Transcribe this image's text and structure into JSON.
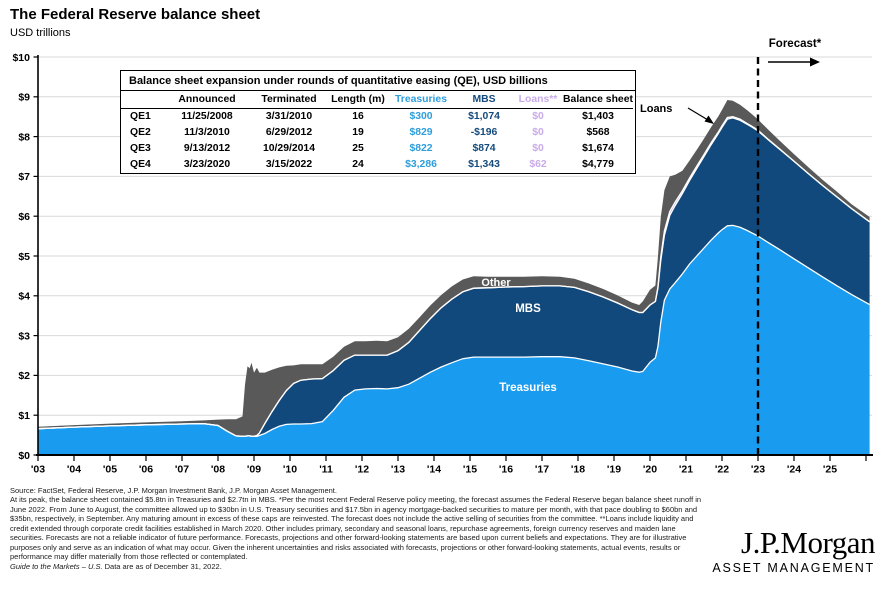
{
  "header": {
    "title": "The Federal Reserve balance sheet",
    "subtitle": "USD trillions"
  },
  "labels": {
    "other": "Other",
    "mbs": "MBS",
    "treasuries": "Treasuries",
    "loans": "Loans",
    "forecast": "Forecast*"
  },
  "axis": {
    "y_labels": [
      "$0",
      "$1",
      "$2",
      "$3",
      "$4",
      "$5",
      "$6",
      "$7",
      "$8",
      "$9",
      "$10"
    ],
    "x_labels": [
      "'03",
      "'04",
      "'05",
      "'06",
      "'07",
      "'08",
      "'09",
      "'10",
      "'11",
      "'12",
      "'13",
      "'14",
      "'15",
      "'16",
      "'17",
      "'18",
      "'19",
      "'20",
      "'21",
      "'22",
      "'23",
      "'24",
      "'25"
    ]
  },
  "table": {
    "title": "Balance sheet expansion under rounds of quantitative easing (QE), USD billions",
    "columns": [
      "",
      "Announced",
      "Terminated",
      "Length (m)",
      "Treasuries",
      "MBS",
      "Loans**",
      "Balance sheet"
    ],
    "rows": [
      [
        "QE1",
        "11/25/2008",
        "3/31/2010",
        "16",
        "$300",
        "$1,074",
        "$0",
        "$1,403"
      ],
      [
        "QE2",
        "11/3/2010",
        "6/29/2012",
        "19",
        "$829",
        "-$196",
        "$0",
        "$568"
      ],
      [
        "QE3",
        "9/13/2012",
        "10/29/2014",
        "25",
        "$822",
        "$874",
        "$0",
        "$1,674"
      ],
      [
        "QE4",
        "3/23/2020",
        "3/15/2022",
        "24",
        "$3,286",
        "$1,343",
        "$62",
        "$4,779"
      ]
    ]
  },
  "chart_data": {
    "type": "area",
    "stacked": true,
    "title": "The Federal Reserve balance sheet",
    "ylabel": "USD trillions",
    "ylim": [
      0,
      10
    ],
    "x_range": [
      2003,
      2026.1
    ],
    "forecast_start": 2023.0,
    "grid": true,
    "x": [
      2003,
      2004,
      2005,
      2006,
      2007,
      2007.6,
      2008,
      2008.25,
      2008.5,
      2008.68,
      2008.75,
      2008.82,
      2008.88,
      2008.93,
      2009,
      2009.08,
      2009.15,
      2009.3,
      2009.5,
      2009.7,
      2009.9,
      2010.1,
      2010.3,
      2010.6,
      2010.9,
      2011.2,
      2011.5,
      2011.8,
      2012.1,
      2012.4,
      2012.7,
      2013,
      2013.3,
      2013.6,
      2013.9,
      2014.2,
      2014.5,
      2014.8,
      2015.1,
      2015.5,
      2016,
      2016.5,
      2017,
      2017.5,
      2017.9,
      2018.3,
      2018.7,
      2019.1,
      2019.5,
      2019.7,
      2019.8,
      2020,
      2020.15,
      2020.22,
      2020.3,
      2020.4,
      2020.55,
      2020.7,
      2020.9,
      2021.1,
      2021.3,
      2021.5,
      2021.7,
      2021.9,
      2022,
      2022.15,
      2022.3,
      2022.5,
      2022.7,
      2022.85,
      2023,
      2023.3,
      2023.6,
      2024,
      2024.4,
      2024.8,
      2025.2,
      2025.6,
      2026.1
    ],
    "series": [
      {
        "name": "Treasuries",
        "color": "#199bf0",
        "values": [
          0.66,
          0.7,
          0.73,
          0.76,
          0.78,
          0.79,
          0.74,
          0.6,
          0.48,
          0.47,
          0.47,
          0.48,
          0.48,
          0.47,
          0.47,
          0.47,
          0.49,
          0.54,
          0.64,
          0.72,
          0.77,
          0.78,
          0.78,
          0.79,
          0.84,
          1.12,
          1.45,
          1.63,
          1.66,
          1.67,
          1.66,
          1.69,
          1.78,
          1.93,
          2.08,
          2.21,
          2.32,
          2.42,
          2.46,
          2.46,
          2.46,
          2.46,
          2.47,
          2.47,
          2.44,
          2.37,
          2.29,
          2.21,
          2.11,
          2.08,
          2.1,
          2.33,
          2.44,
          2.72,
          3.34,
          3.89,
          4.17,
          4.33,
          4.55,
          4.8,
          5.0,
          5.2,
          5.4,
          5.58,
          5.66,
          5.76,
          5.77,
          5.72,
          5.64,
          5.57,
          5.5,
          5.33,
          5.16,
          4.93,
          4.7,
          4.47,
          4.25,
          4.03,
          3.78
        ]
      },
      {
        "name": "MBS",
        "color": "#12497d",
        "values": [
          0,
          0,
          0,
          0,
          0,
          0,
          0,
          0,
          0,
          0,
          0,
          0,
          0,
          0,
          0,
          0.02,
          0.06,
          0.25,
          0.45,
          0.65,
          0.85,
          1.02,
          1.1,
          1.12,
          1.08,
          1.0,
          0.93,
          0.88,
          0.85,
          0.84,
          0.85,
          0.93,
          1.05,
          1.2,
          1.35,
          1.49,
          1.6,
          1.68,
          1.73,
          1.74,
          1.76,
          1.77,
          1.78,
          1.78,
          1.77,
          1.73,
          1.68,
          1.61,
          1.54,
          1.5,
          1.48,
          1.44,
          1.42,
          1.46,
          1.55,
          1.63,
          1.85,
          1.94,
          2.02,
          2.1,
          2.2,
          2.3,
          2.4,
          2.5,
          2.57,
          2.68,
          2.7,
          2.69,
          2.67,
          2.66,
          2.64,
          2.58,
          2.52,
          2.45,
          2.37,
          2.3,
          2.23,
          2.16,
          2.08
        ]
      },
      {
        "name": "Loans",
        "color": "#c9abe9",
        "values": [
          0,
          0,
          0,
          0,
          0,
          0,
          0,
          0,
          0,
          0,
          0,
          0,
          0,
          0,
          0,
          0,
          0,
          0,
          0,
          0,
          0,
          0,
          0,
          0,
          0,
          0,
          0,
          0,
          0,
          0,
          0,
          0,
          0,
          0,
          0,
          0,
          0,
          0,
          0,
          0,
          0,
          0,
          0,
          0,
          0,
          0,
          0,
          0,
          0,
          0,
          0,
          0,
          0,
          0.04,
          0.09,
          0.11,
          0.1,
          0.09,
          0.07,
          0.06,
          0.06,
          0.05,
          0.05,
          0.04,
          0.04,
          0.04,
          0.03,
          0.03,
          0.02,
          0.02,
          0.02,
          0.01,
          0.01,
          0,
          0,
          0,
          0,
          0,
          0
        ]
      },
      {
        "name": "Other",
        "color": "#595959",
        "values": [
          0.05,
          0.05,
          0.06,
          0.06,
          0.07,
          0.08,
          0.15,
          0.3,
          0.42,
          0.5,
          1.3,
          1.75,
          1.7,
          1.85,
          1.6,
          1.7,
          1.52,
          1.28,
          1.05,
          0.83,
          0.62,
          0.45,
          0.4,
          0.37,
          0.36,
          0.35,
          0.34,
          0.35,
          0.35,
          0.36,
          0.35,
          0.34,
          0.34,
          0.33,
          0.33,
          0.32,
          0.32,
          0.31,
          0.3,
          0.28,
          0.26,
          0.25,
          0.24,
          0.23,
          0.22,
          0.21,
          0.2,
          0.19,
          0.18,
          0.19,
          0.28,
          0.38,
          0.4,
          0.75,
          1.0,
          1.02,
          0.88,
          0.68,
          0.5,
          0.44,
          0.41,
          0.4,
          0.39,
          0.39,
          0.4,
          0.44,
          0.4,
          0.36,
          0.33,
          0.3,
          0.27,
          0.24,
          0.21,
          0.18,
          0.16,
          0.14,
          0.13,
          0.11,
          0.12
        ]
      }
    ]
  },
  "colors": {
    "treasuries": "#199bf0",
    "mbs": "#12497d",
    "loans": "#c9abe9",
    "other": "#595959",
    "table_treasuries_text": "#2e9edc",
    "table_loans_text": "#c9abe9",
    "gridline": "#d9d9d9",
    "forecast_line": "#000000"
  },
  "footer": {
    "source": "Source: FactSet, Federal Reserve, J.P. Morgan Investment Bank, J.P. Morgan Asset Management.",
    "body": "At its peak, the balance sheet contained $5.8tn in Treasuries and $2.7tn in MBS. *Per the most recent Federal Reserve policy meeting, the forecast assumes the Federal Reserve began balance sheet runoff in June 2022. From June to August, the committee allowed up to $30bn in U.S. Treasury securities and $17.5bn in agency mortgage-backed securities to mature per month, with that pace doubling to $60bn and $35bn, respectively, in September. Any maturing amount in excess of these caps are reinvested. The forecast does not include the active selling of securities from the committee. **Loans include liquidity and credit extended through corporate credit facilities established in March 2020. Other includes primary, secondary and seasonal loans, repurchase agreements, foreign currency reserves and maiden lane securities. Forecasts are not a reliable indicator of future performance. Forecasts, projections and other forward-looking statements are based upon current beliefs and expectations. They are for illustrative purposes only and serve as an indication of what may occur. Given the inherent uncertainties and risks associated with forecasts, projections or other forward-looking statements, actual events, results or performance may differ materially from those reflected or contemplated.",
    "gtm_italic": "Guide to the Markets – U.S.",
    "gtm_rest": " Data are as of December 31, 2022."
  },
  "logo": {
    "wordmark": "J.P.Morgan",
    "division": "ASSET MANAGEMENT"
  }
}
